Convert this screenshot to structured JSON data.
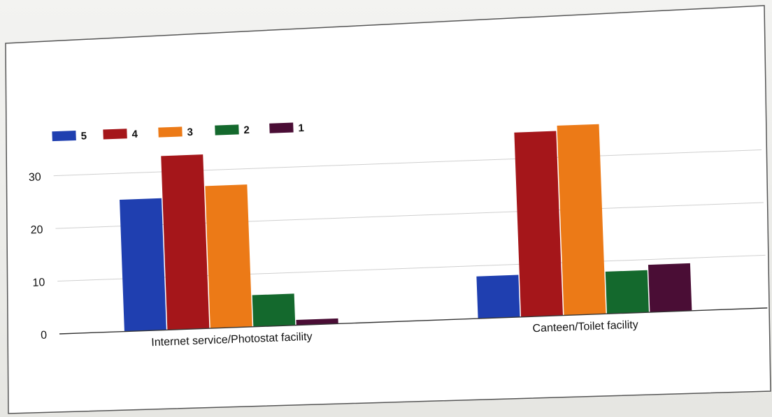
{
  "chart_data": {
    "type": "bar",
    "title": "",
    "xlabel": "",
    "ylabel": "",
    "categories": [
      "Internet service/Photostat facility",
      "Canteen/Toilet facility"
    ],
    "series": [
      {
        "name": "5",
        "color": "#1f3fb0",
        "values": [
          25,
          8
        ]
      },
      {
        "name": "4",
        "color": "#a5161a",
        "values": [
          33,
          35
        ]
      },
      {
        "name": "3",
        "color": "#ec7a17",
        "values": [
          27,
          36
        ]
      },
      {
        "name": "2",
        "color": "#14692d",
        "values": [
          6,
          8
        ]
      },
      {
        "name": "1",
        "color": "#4a0d35",
        "values": [
          1,
          9
        ]
      }
    ],
    "ylim": [
      0,
      40
    ],
    "yticks": [
      0,
      10,
      20,
      30
    ],
    "grid": true,
    "legend_position": "top-left"
  }
}
